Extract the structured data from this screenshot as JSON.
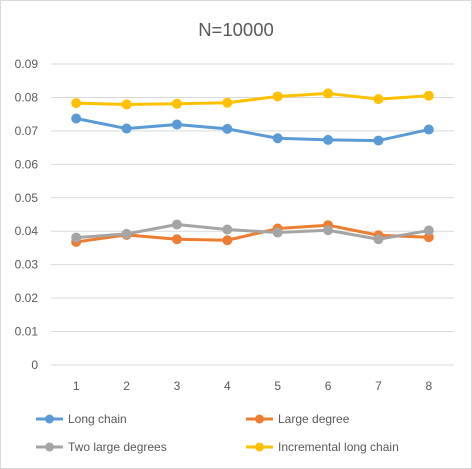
{
  "chart_data": {
    "type": "line",
    "title": "N=10000",
    "xlabel": "",
    "ylabel": "",
    "categories": [
      "1",
      "2",
      "3",
      "4",
      "5",
      "6",
      "7",
      "8"
    ],
    "ylim": [
      0,
      0.09
    ],
    "y_ticks": [
      "0",
      "0.01",
      "0.02",
      "0.03",
      "0.04",
      "0.05",
      "0.06",
      "0.07",
      "0.08",
      "0.09"
    ],
    "grid": true,
    "legend_position": "bottom",
    "series": [
      {
        "name": "Long chain",
        "color": "#5b9bd5",
        "values": [
          0.0737,
          0.0707,
          0.0719,
          0.0706,
          0.0678,
          0.0673,
          0.0671,
          0.0704
        ]
      },
      {
        "name": "Large degree",
        "color": "#ed7d31",
        "values": [
          0.0368,
          0.0389,
          0.0376,
          0.0373,
          0.0408,
          0.0418,
          0.0388,
          0.0382
        ]
      },
      {
        "name": "Two large degrees",
        "color": "#a5a5a5",
        "values": [
          0.0381,
          0.0392,
          0.042,
          0.0405,
          0.0396,
          0.0403,
          0.0376,
          0.0402
        ]
      },
      {
        "name": "Incremental long chain",
        "color": "#ffc000",
        "values": [
          0.0783,
          0.0779,
          0.0781,
          0.0784,
          0.0803,
          0.0812,
          0.0795,
          0.0805
        ]
      }
    ]
  }
}
